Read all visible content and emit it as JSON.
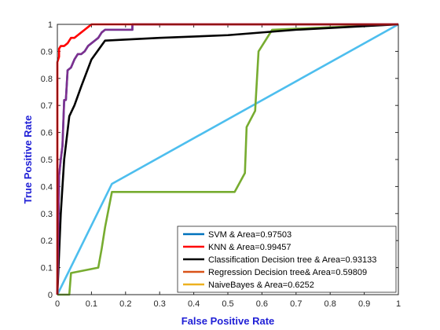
{
  "chart_data": {
    "type": "line",
    "title": "",
    "xlabel": "False Positive Rate",
    "ylabel": "True Positive Rate",
    "xlim": [
      0,
      1
    ],
    "ylim": [
      0,
      1
    ],
    "xticks": [
      "0",
      "0.1",
      "0.2",
      "0.3",
      "0.4",
      "0.5",
      "0.6",
      "0.7",
      "0.8",
      "0.9",
      "1"
    ],
    "yticks": [
      "0",
      "0.1",
      "0.2",
      "0.3",
      "0.4",
      "0.5",
      "0.6",
      "0.7",
      "0.8",
      "0.9",
      "1"
    ],
    "grid": false,
    "legend_position": "bottom-right",
    "series": [
      {
        "name": "SVM & Area=0.97503",
        "color": "#0072bd",
        "points": [
          [
            0,
            0
          ],
          [
            0.005,
            0.44
          ],
          [
            0.01,
            0.5
          ],
          [
            0.015,
            0.55
          ],
          [
            0.02,
            0.72
          ],
          [
            0.025,
            0.72
          ],
          [
            0.03,
            0.83
          ],
          [
            0.04,
            0.84
          ],
          [
            0.05,
            0.87
          ],
          [
            0.06,
            0.89
          ],
          [
            0.07,
            0.89
          ],
          [
            0.08,
            0.9
          ],
          [
            0.09,
            0.92
          ],
          [
            0.1,
            0.93
          ],
          [
            0.11,
            0.94
          ],
          [
            0.12,
            0.95
          ],
          [
            0.13,
            0.97
          ],
          [
            0.14,
            0.98
          ],
          [
            0.22,
            0.98
          ],
          [
            0.22,
            1
          ],
          [
            1,
            1
          ]
        ]
      },
      {
        "name": "KNN & Area=0.99457",
        "color": "#ff0000",
        "points": [
          [
            0,
            0
          ],
          [
            0,
            0.86
          ],
          [
            0.005,
            0.88
          ],
          [
            0.005,
            0.91
          ],
          [
            0.01,
            0.92
          ],
          [
            0.02,
            0.92
          ],
          [
            0.03,
            0.93
          ],
          [
            0.04,
            0.95
          ],
          [
            0.05,
            0.95
          ],
          [
            0.06,
            0.96
          ],
          [
            0.07,
            0.97
          ],
          [
            0.08,
            0.98
          ],
          [
            0.09,
            0.99
          ],
          [
            0.1,
            1
          ],
          [
            1,
            1
          ]
        ]
      },
      {
        "name": "Classification Decision tree & Area=0.93133",
        "color": "#000000",
        "points": [
          [
            0,
            0
          ],
          [
            0.005,
            0.15
          ],
          [
            0.01,
            0.3
          ],
          [
            0.02,
            0.5
          ],
          [
            0.035,
            0.66
          ],
          [
            0.05,
            0.7
          ],
          [
            0.07,
            0.77
          ],
          [
            0.1,
            0.87
          ],
          [
            0.14,
            0.94
          ],
          [
            0.3,
            0.95
          ],
          [
            0.5,
            0.96
          ],
          [
            0.7,
            0.98
          ],
          [
            1,
            1
          ]
        ]
      },
      {
        "name": "Regression Decision tree& Area=0.59809",
        "color": "#d95319",
        "points": []
      },
      {
        "name": "NaiveBayes & Area=0.6252",
        "color": "#edb120",
        "points": []
      },
      {
        "name": "",
        "color": "#7e2f8e",
        "points": [
          [
            0,
            0
          ],
          [
            0.005,
            0.44
          ],
          [
            0.01,
            0.5
          ],
          [
            0.015,
            0.55
          ],
          [
            0.02,
            0.72
          ],
          [
            0.025,
            0.72
          ],
          [
            0.03,
            0.83
          ],
          [
            0.04,
            0.84
          ],
          [
            0.05,
            0.87
          ],
          [
            0.06,
            0.89
          ],
          [
            0.07,
            0.89
          ],
          [
            0.08,
            0.9
          ],
          [
            0.09,
            0.92
          ],
          [
            0.1,
            0.93
          ],
          [
            0.11,
            0.94
          ],
          [
            0.12,
            0.95
          ],
          [
            0.13,
            0.97
          ],
          [
            0.14,
            0.98
          ],
          [
            0.22,
            0.98
          ],
          [
            0.22,
            1
          ],
          [
            1,
            1
          ]
        ]
      },
      {
        "name": "",
        "color": "#77ac30",
        "points": [
          [
            0,
            0
          ],
          [
            0.035,
            0
          ],
          [
            0.04,
            0.08
          ],
          [
            0.12,
            0.1
          ],
          [
            0.13,
            0.17
          ],
          [
            0.14,
            0.25
          ],
          [
            0.16,
            0.38
          ],
          [
            0.52,
            0.38
          ],
          [
            0.55,
            0.45
          ],
          [
            0.555,
            0.62
          ],
          [
            0.58,
            0.68
          ],
          [
            0.59,
            0.9
          ],
          [
            0.63,
            0.98
          ],
          [
            1,
            1
          ]
        ]
      },
      {
        "name": "",
        "color": "#4dbeee",
        "points": [
          [
            0,
            0
          ],
          [
            0.16,
            0.41
          ],
          [
            1,
            1
          ]
        ]
      }
    ]
  }
}
